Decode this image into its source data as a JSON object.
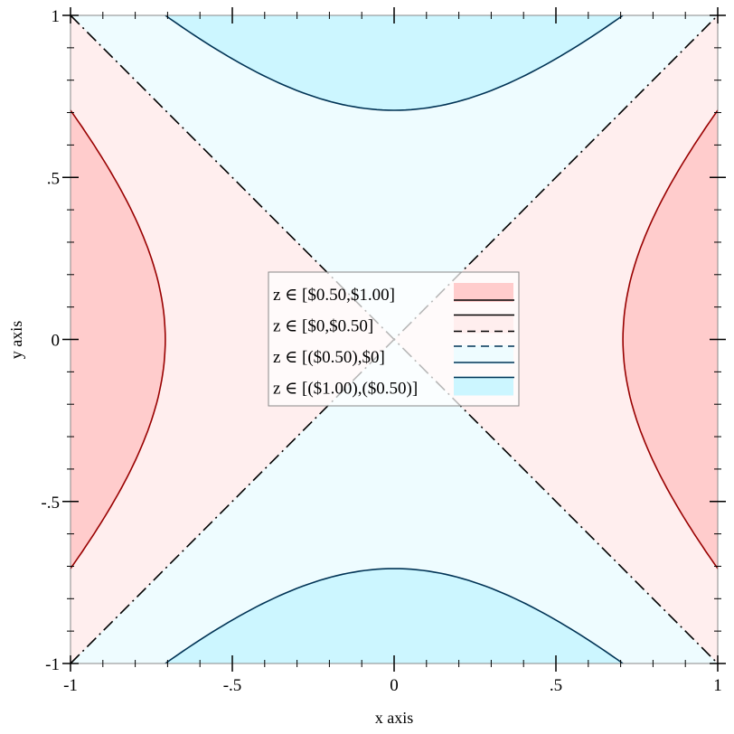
{
  "chart_data": {
    "type": "contour",
    "function": "z = x^2 - y^2",
    "xlabel": "x axis",
    "ylabel": "y axis",
    "xlim": [
      -1,
      1
    ],
    "ylim": [
      -1,
      1
    ],
    "xticks": [
      {
        "v": -1,
        "label": "-1"
      },
      {
        "v": -0.5,
        "label": "-.5"
      },
      {
        "v": 0,
        "label": "0"
      },
      {
        "v": 0.5,
        "label": ".5"
      },
      {
        "v": 1,
        "label": "1"
      }
    ],
    "yticks": [
      {
        "v": -1,
        "label": "-1"
      },
      {
        "v": -0.5,
        "label": "-.5"
      },
      {
        "v": 0,
        "label": "0"
      },
      {
        "v": 0.5,
        "label": ".5"
      },
      {
        "v": 1,
        "label": "1"
      }
    ],
    "contour_levels": [
      -0.5,
      0,
      0.5
    ],
    "legend_position": "center",
    "legend": [
      {
        "label": "z ∈ [$0.50,$1.00]",
        "fill": "#ffcccc"
      },
      {
        "label": "z ∈ [$0,$0.50]",
        "fill": "#ffeeee"
      },
      {
        "label": "z ∈ [($0.50),$0]",
        "fill": "#eefcff"
      },
      {
        "label": "z ∈ [($1.00),($0.50)]",
        "fill": "#ccf6ff"
      }
    ],
    "colors": {
      "line_pos": "#990000",
      "line_zero": "#000000",
      "line_neg": "#003355"
    }
  }
}
